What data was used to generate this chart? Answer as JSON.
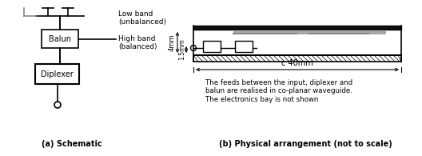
{
  "fig_width": 5.28,
  "fig_height": 1.95,
  "dpi": 100,
  "bg_color": "#ffffff",
  "label_a": "(a) Schematic",
  "label_b": "(b) Physical arrangement (not to scale)",
  "text_lowband": "Low band\n(unbalanced)",
  "text_highband": "High band\n(balanced)",
  "text_balun": "Balun",
  "text_diplexer": "Diplexer",
  "text_caption": "The feeds between the input, diplexer and\nbalun are realised in co-planar waveguide.\nThe electronics bay is not shown",
  "text_dim1": "4mm",
  "text_dim2": "1.5mm",
  "text_dim3": "c 40mm",
  "line_color": "#000000",
  "gray_color": "#888888"
}
